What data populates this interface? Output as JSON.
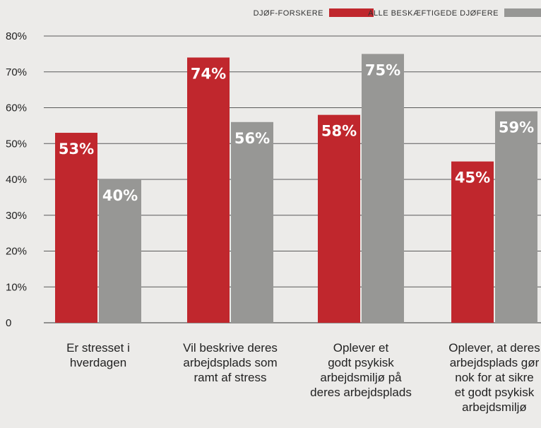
{
  "chart_data": {
    "type": "bar",
    "title": "",
    "xlabel": "",
    "ylabel": "",
    "ylim": [
      0,
      80
    ],
    "yticks": [
      0,
      10,
      20,
      30,
      40,
      50,
      60,
      70,
      80
    ],
    "ytick_labels": [
      "0",
      "10%",
      "20%",
      "30%",
      "40%",
      "50%",
      "60%",
      "70%",
      "80%"
    ],
    "grid": true,
    "legend_position": "top-right",
    "categories": [
      [
        "Er stresset i",
        "hverdagen"
      ],
      [
        "Vil beskrive deres",
        "arbejdsplads som",
        "ramt af stress"
      ],
      [
        "Oplever et",
        "godt psykisk",
        "arbejdsmiljø på",
        "deres arbejdsplads"
      ],
      [
        "Oplever, at deres",
        "arbejdsplads gør",
        "nok for at sikre",
        "et godt psykisk",
        "arbejdsmiljø"
      ]
    ],
    "series": [
      {
        "name": "DJØF-FORSKERE",
        "color": "#c0272d",
        "values": [
          53,
          74,
          58,
          45
        ],
        "labels": [
          "53%",
          "74%",
          "58%",
          "45%"
        ]
      },
      {
        "name": "ALLE BESKÆFTIGEDE DJØFERE",
        "color": "#979795",
        "values": [
          40,
          56,
          75,
          59
        ],
        "labels": [
          "40%",
          "56%",
          "75%",
          "59%"
        ]
      }
    ]
  },
  "colors": {
    "background": "#ecebe9",
    "gridline": "#5a5a5a",
    "text": "#222222"
  }
}
